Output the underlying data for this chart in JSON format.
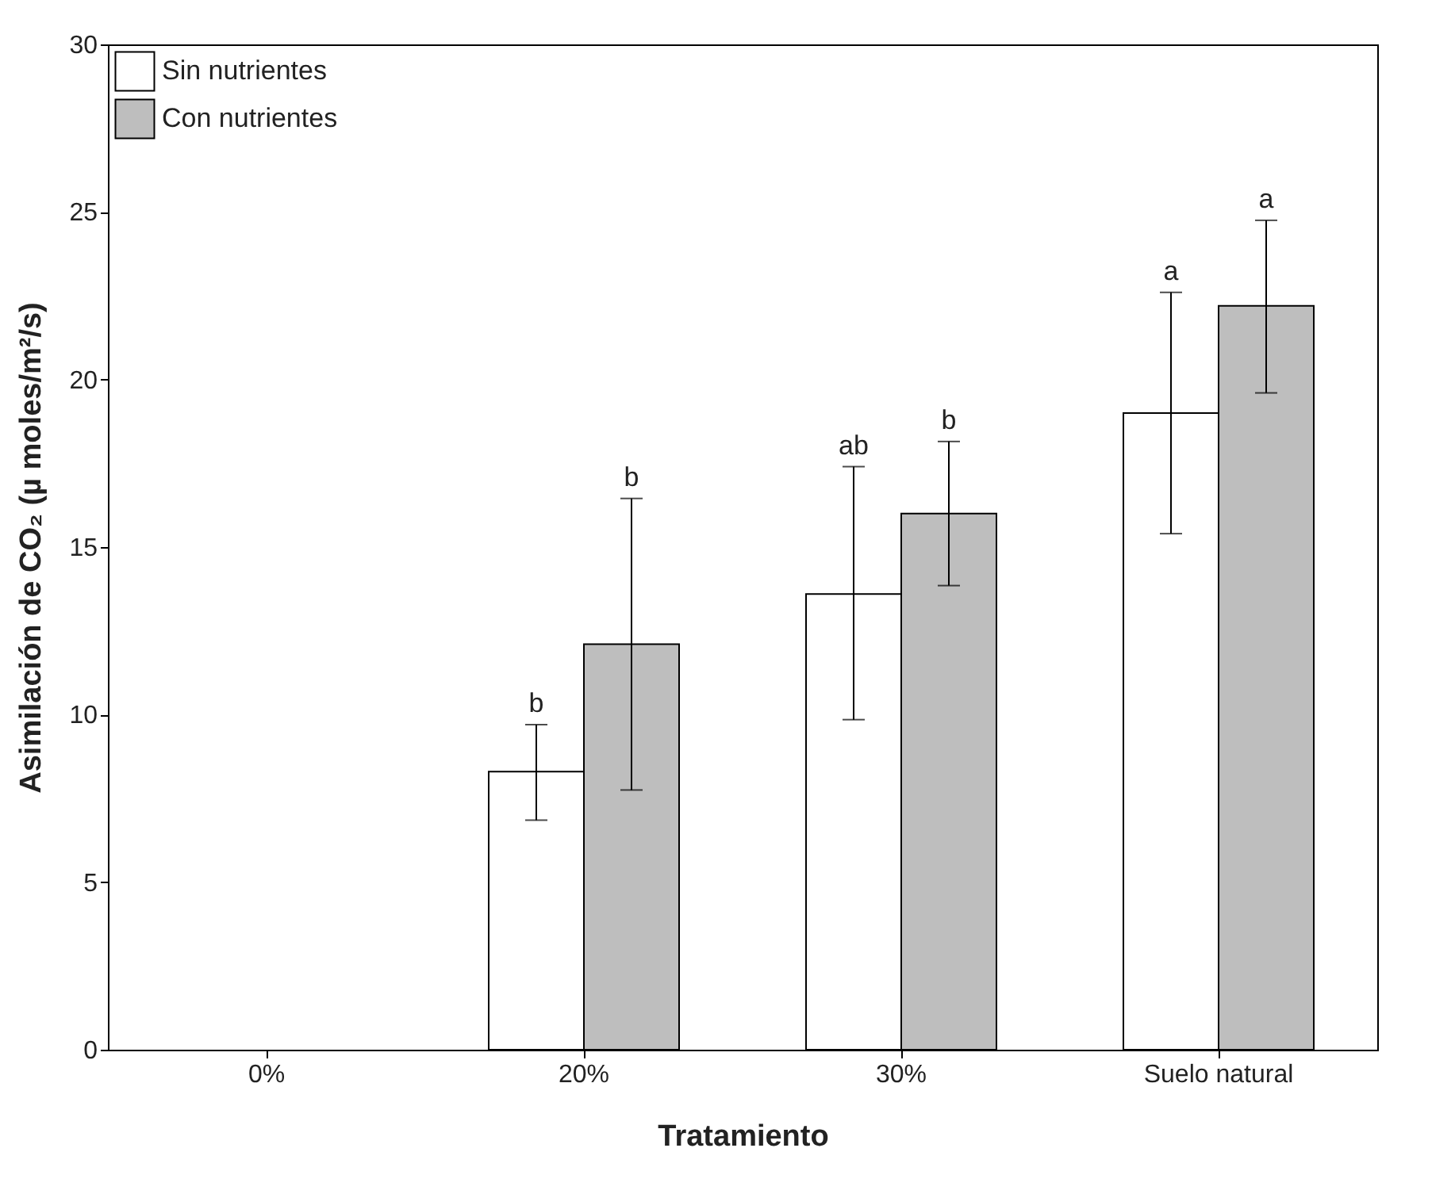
{
  "chart_data": {
    "type": "bar",
    "xlabel": "Tratamiento",
    "ylabel": "Asimilación de CO₂ (µ moles/m²/s)",
    "categories": [
      "0%",
      "20%",
      "30%",
      "Suelo natural"
    ],
    "series": [
      {
        "name": "Sin nutrientes",
        "color": "#ffffff",
        "values": [
          null,
          8.3,
          13.6,
          19.0
        ],
        "errors": [
          null,
          [
            6.85,
            9.7
          ],
          [
            9.85,
            17.4
          ],
          [
            15.4,
            22.6
          ]
        ]
      },
      {
        "name": "Con nutrientes",
        "color": "#bebebe",
        "values": [
          null,
          12.1,
          16.0,
          22.2
        ],
        "errors": [
          null,
          [
            7.75,
            16.45
          ],
          [
            13.85,
            18.15
          ],
          [
            19.6,
            24.75
          ]
        ]
      }
    ],
    "ylim": [
      0,
      30
    ],
    "yticks": [
      0,
      5,
      10,
      15,
      20,
      25,
      30
    ],
    "legend": "top left",
    "grid": false,
    "annotations": [
      "b",
      "b",
      "ab",
      "b",
      "a",
      "a"
    ]
  }
}
